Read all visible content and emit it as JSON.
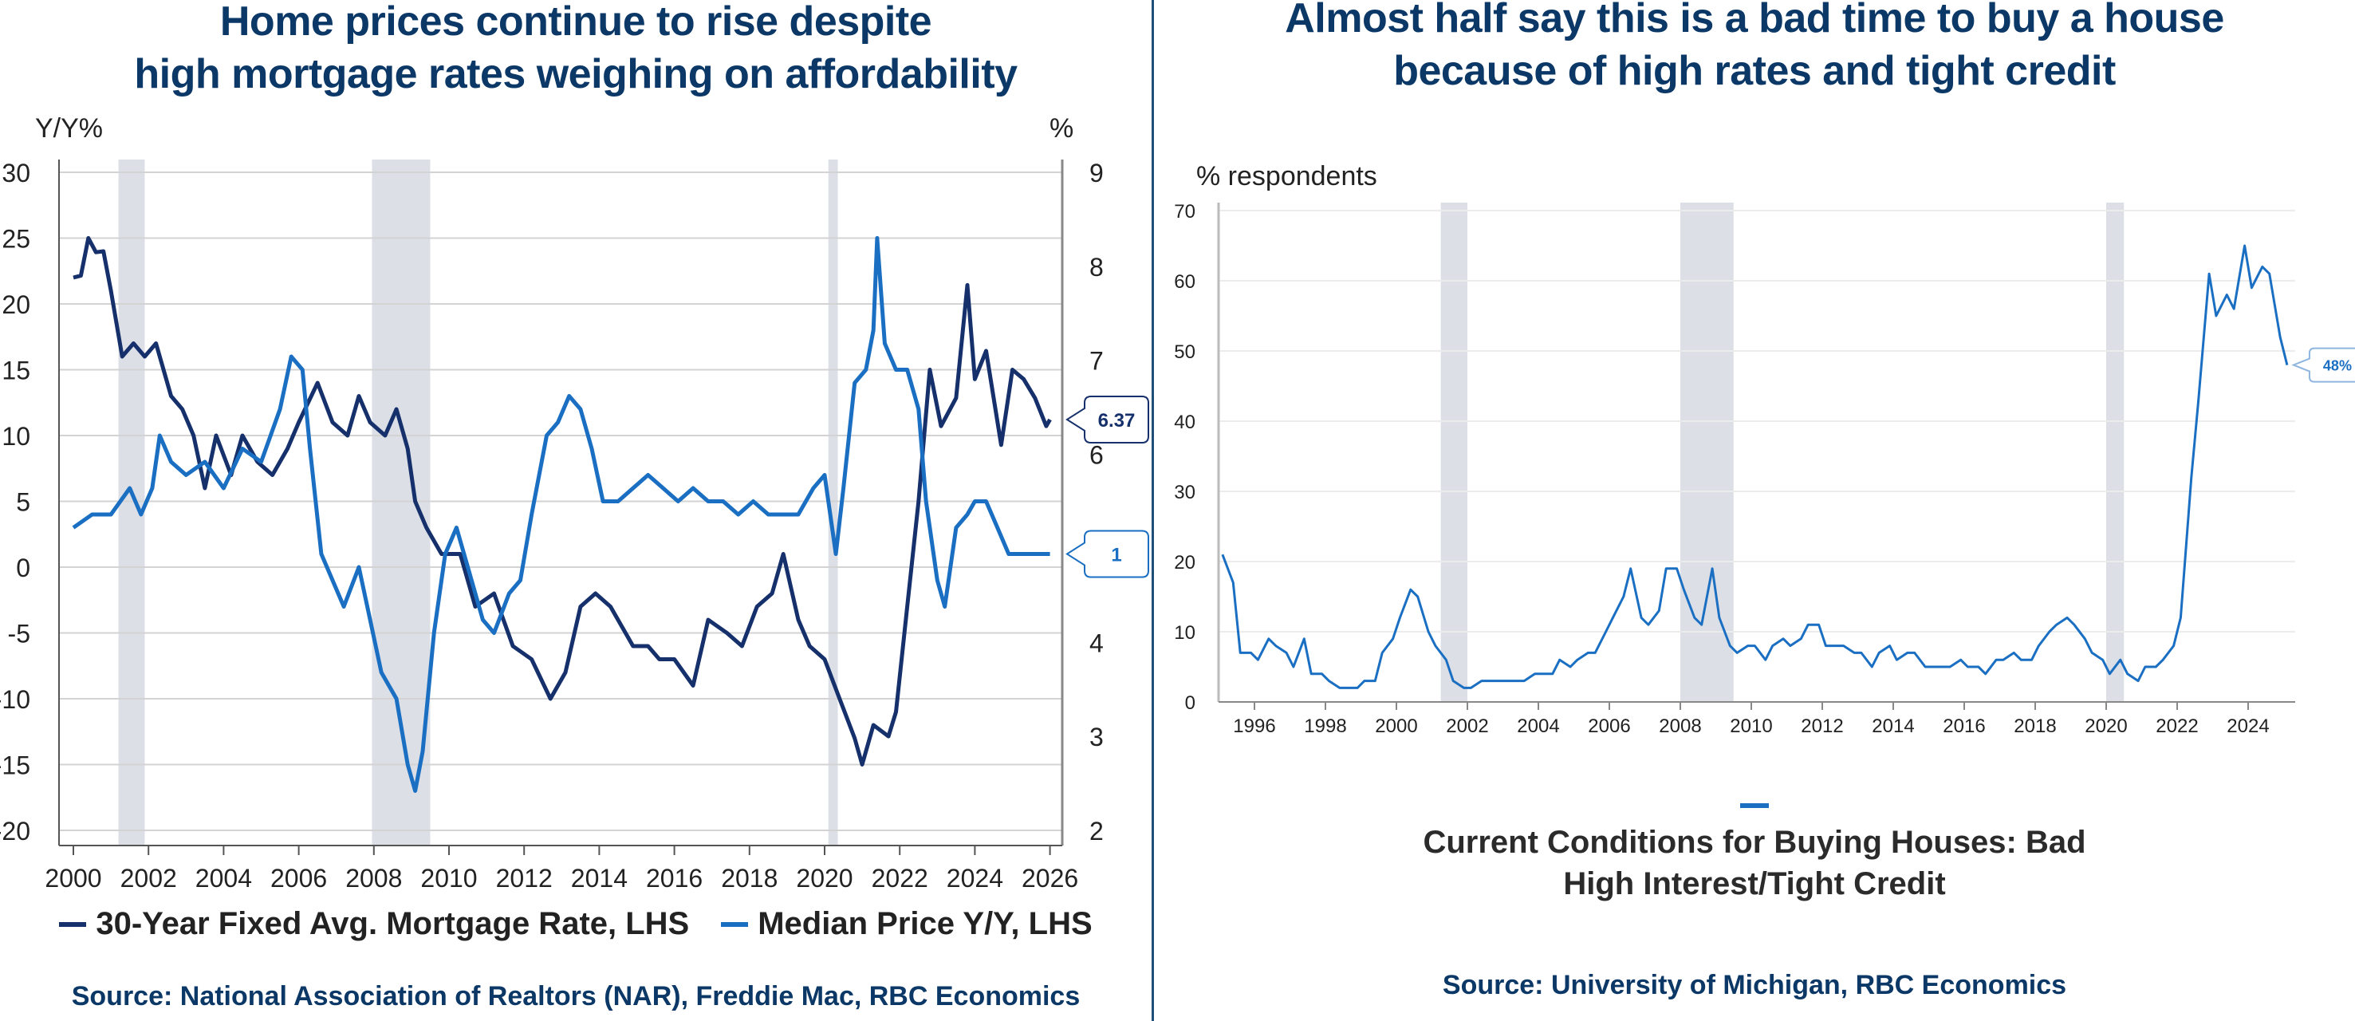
{
  "left_panel": {
    "title_lines": [
      "Home prices continue to rise despite",
      "high mortgage rates weighing on affordability"
    ],
    "left_axis_label": "Y/Y%",
    "right_axis_label": "%",
    "legend": [
      {
        "label": "30-Year Fixed Avg. Mortgage Rate, LHS",
        "color": "#15306b"
      },
      {
        "label": "Median Price Y/Y, LHS",
        "color": "#1a6fc2"
      }
    ],
    "source": "Source: National Association of Realtors (NAR), Freddie Mac, RBC Economics",
    "callouts": [
      {
        "series": "30-Year Fixed Avg. Mortgage Rate, LHS",
        "text": "6.37",
        "color": "#15306b"
      },
      {
        "series": "Median Price Y/Y, LHS",
        "text": "1",
        "color": "#1a6fc2"
      }
    ]
  },
  "right_panel": {
    "title_lines": [
      "Almost half say this is a bad time to buy a house",
      "because of high rates and tight credit"
    ],
    "y_axis_label": "% respondents",
    "legend_lines": [
      "Current Conditions for Buying Houses: Bad",
      "High Interest/Tight Credit"
    ],
    "legend_color": "#1a6fc2",
    "source": "Source: University of Michigan, RBC Economics",
    "callout": {
      "text": "48%",
      "color": "#1a6fc2"
    }
  },
  "chart_data": [
    {
      "type": "line",
      "title": "Home prices continue to rise despite high mortgage rates weighing on affordability",
      "xlabel": "",
      "ylabel": "Y/Y%",
      "y2label": "%",
      "xlim": [
        1999.5,
        2026.5
      ],
      "ylim": [
        -21,
        31
      ],
      "y2lim": [
        1.86,
        9.14
      ],
      "x_ticks": [
        2000,
        2002,
        2004,
        2006,
        2008,
        2010,
        2012,
        2014,
        2016,
        2018,
        2020,
        2022,
        2024,
        2026
      ],
      "y_ticks": [
        30,
        25,
        20,
        15,
        10,
        5,
        0,
        -5,
        -10,
        -15,
        -20
      ],
      "y2_ticks": [
        9,
        8,
        7,
        6,
        5,
        4,
        3,
        2
      ],
      "grid": true,
      "legend_position": "bottom",
      "recessions": [
        [
          2001.2,
          2001.9
        ],
        [
          2007.95,
          2009.5
        ],
        [
          2020.1,
          2020.35
        ]
      ],
      "series": [
        {
          "name": "30-Year Fixed Avg. Mortgage Rate, LHS",
          "axis": "right",
          "color": "#15306b",
          "last_value_label": "6.37",
          "x": [
            2000.0,
            2000.2,
            2000.4,
            2000.6,
            2000.8,
            2001.0,
            2001.3,
            2001.6,
            2001.9,
            2002.2,
            2002.6,
            2002.9,
            2003.2,
            2003.5,
            2003.8,
            2004.2,
            2004.5,
            2004.9,
            2005.3,
            2005.7,
            2006.0,
            2006.5,
            2006.9,
            2007.3,
            2007.6,
            2007.9,
            2008.3,
            2008.6,
            2008.9,
            2009.1,
            2009.4,
            2009.8,
            2010.3,
            2010.7,
            2011.2,
            2011.7,
            2012.2,
            2012.7,
            2013.1,
            2013.5,
            2013.9,
            2014.3,
            2014.9,
            2015.3,
            2015.6,
            2016.0,
            2016.5,
            2016.9,
            2017.4,
            2017.8,
            2018.2,
            2018.6,
            2018.9,
            2019.3,
            2019.6,
            2020.0,
            2020.4,
            2020.8,
            2021.0,
            2021.3,
            2021.7,
            2021.9,
            2022.2,
            2022.5,
            2022.8,
            2023.1,
            2023.5,
            2023.8,
            2024.0,
            2024.3,
            2024.7,
            2025.0,
            2025.3,
            2025.6,
            2025.9,
            2026.0
          ],
          "values": [
            7.88,
            7.9,
            8.3,
            8.15,
            8.16,
            7.74,
            7.04,
            7.18,
            7.04,
            7.18,
            6.62,
            6.48,
            6.2,
            5.64,
            6.2,
            5.78,
            6.2,
            5.92,
            5.78,
            6.06,
            6.34,
            6.76,
            6.34,
            6.2,
            6.62,
            6.34,
            6.2,
            6.48,
            6.06,
            5.5,
            5.22,
            4.94,
            4.94,
            4.38,
            4.52,
            3.96,
            3.82,
            3.4,
            3.68,
            4.38,
            4.52,
            4.38,
            3.96,
            3.96,
            3.82,
            3.82,
            3.54,
            4.24,
            4.1,
            3.96,
            4.38,
            4.52,
            4.94,
            4.24,
            3.96,
            3.82,
            3.4,
            2.98,
            2.7,
            3.12,
            3.0,
            3.26,
            4.38,
            5.5,
            6.9,
            6.3,
            6.6,
            7.8,
            6.8,
            7.1,
            6.1,
            6.9,
            6.8,
            6.6,
            6.3,
            6.37
          ]
        },
        {
          "name": "Median Price Y/Y, LHS",
          "axis": "left",
          "color": "#1a6fc2",
          "last_value_label": "1",
          "x": [
            2000.0,
            2000.5,
            2001.0,
            2001.5,
            2001.8,
            2002.1,
            2002.3,
            2002.6,
            2003.0,
            2003.5,
            2004.0,
            2004.5,
            2005.0,
            2005.5,
            2005.8,
            2006.1,
            2006.3,
            2006.6,
            2006.9,
            2007.2,
            2007.6,
            2007.9,
            2008.2,
            2008.6,
            2008.9,
            2009.1,
            2009.3,
            2009.6,
            2009.9,
            2010.2,
            2010.6,
            2010.9,
            2011.2,
            2011.6,
            2011.9,
            2012.2,
            2012.6,
            2012.9,
            2013.2,
            2013.5,
            2013.8,
            2014.1,
            2014.5,
            2014.9,
            2015.3,
            2015.7,
            2016.1,
            2016.5,
            2016.9,
            2017.3,
            2017.7,
            2018.1,
            2018.5,
            2018.9,
            2019.3,
            2019.7,
            2020.0,
            2020.3,
            2020.5,
            2020.8,
            2021.1,
            2021.3,
            2021.4,
            2021.6,
            2021.9,
            2022.2,
            2022.5,
            2022.7,
            2023.0,
            2023.2,
            2023.5,
            2023.8,
            2024.0,
            2024.3,
            2024.6,
            2024.9,
            2025.2,
            2025.6,
            2026.0
          ],
          "values": [
            3,
            4,
            4,
            6,
            4,
            6,
            10,
            8,
            7,
            8,
            6,
            9,
            8,
            12,
            16,
            15,
            9,
            1,
            -1,
            -3,
            0,
            -4,
            -8,
            -10,
            -15,
            -17,
            -14,
            -5,
            1,
            3,
            -1,
            -4,
            -5,
            -2,
            -1,
            4,
            10,
            11,
            13,
            12,
            9,
            5,
            5,
            6,
            7,
            6,
            5,
            6,
            5,
            5,
            4,
            5,
            4,
            4,
            4,
            6,
            7,
            1,
            6,
            14,
            15,
            18,
            25,
            17,
            15,
            15,
            12,
            5,
            -1,
            -3,
            3,
            4,
            5,
            5,
            3,
            1,
            1,
            1,
            1
          ]
        }
      ]
    },
    {
      "type": "line",
      "title": "Almost half say this is a bad time to buy a house because of high rates and tight credit",
      "xlabel": "",
      "ylabel": "% respondents",
      "xlim": [
        1994.8,
        2025.7
      ],
      "ylim": [
        0,
        72
      ],
      "x_ticks": [
        1996,
        1998,
        2000,
        2002,
        2004,
        2006,
        2008,
        2010,
        2012,
        2014,
        2016,
        2018,
        2020,
        2022,
        2024
      ],
      "y_ticks": [
        0,
        10,
        20,
        30,
        40,
        50,
        60,
        70
      ],
      "grid": true,
      "legend_position": "bottom",
      "recessions": [
        [
          2001.25,
          2002.0
        ],
        [
          2008.0,
          2009.5
        ],
        [
          2020.0,
          2020.5
        ]
      ],
      "series": [
        {
          "name": "Current Conditions for Buying Houses: Bad High Interest/Tight Credit",
          "color": "#1a6fc2",
          "last_value_label": "48%",
          "x": [
            1995.1,
            1995.4,
            1995.6,
            1995.9,
            1996.1,
            1996.4,
            1996.6,
            1996.9,
            1997.1,
            1997.4,
            1997.6,
            1997.9,
            1998.1,
            1998.4,
            1998.6,
            1998.9,
            1999.1,
            1999.4,
            1999.6,
            1999.9,
            2000.1,
            2000.4,
            2000.6,
            2000.9,
            2001.1,
            2001.4,
            2001.6,
            2001.9,
            2002.1,
            2002.4,
            2002.6,
            2002.9,
            2003.1,
            2003.4,
            2003.6,
            2003.9,
            2004.1,
            2004.4,
            2004.6,
            2004.9,
            2005.1,
            2005.4,
            2005.6,
            2005.9,
            2006.1,
            2006.4,
            2006.6,
            2006.9,
            2007.1,
            2007.4,
            2007.6,
            2007.9,
            2008.1,
            2008.4,
            2008.6,
            2008.9,
            2009.1,
            2009.4,
            2009.6,
            2009.9,
            2010.1,
            2010.4,
            2010.6,
            2010.9,
            2011.1,
            2011.4,
            2011.6,
            2011.9,
            2012.1,
            2012.4,
            2012.6,
            2012.9,
            2013.1,
            2013.4,
            2013.6,
            2013.9,
            2014.1,
            2014.4,
            2014.6,
            2014.9,
            2015.1,
            2015.4,
            2015.6,
            2015.9,
            2016.1,
            2016.4,
            2016.6,
            2016.9,
            2017.1,
            2017.4,
            2017.6,
            2017.9,
            2018.1,
            2018.4,
            2018.6,
            2018.9,
            2019.1,
            2019.4,
            2019.6,
            2019.9,
            2020.1,
            2020.4,
            2020.6,
            2020.9,
            2021.1,
            2021.4,
            2021.6,
            2021.9,
            2022.1,
            2022.4,
            2022.6,
            2022.9,
            2023.1,
            2023.4,
            2023.6,
            2023.9,
            2024.1,
            2024.4,
            2024.6,
            2024.9,
            2025.1
          ],
          "values": [
            21,
            17,
            7,
            7,
            6,
            9,
            8,
            7,
            5,
            9,
            4,
            4,
            3,
            2,
            2,
            2,
            3,
            3,
            7,
            9,
            12,
            16,
            15,
            10,
            8,
            6,
            3,
            2,
            2,
            3,
            3,
            3,
            3,
            3,
            3,
            4,
            4,
            4,
            6,
            5,
            6,
            7,
            7,
            10,
            12,
            15,
            19,
            12,
            11,
            13,
            19,
            19,
            16,
            12,
            11,
            19,
            12,
            8,
            7,
            8,
            8,
            6,
            8,
            9,
            8,
            9,
            11,
            11,
            8,
            8,
            8,
            7,
            7,
            5,
            7,
            8,
            6,
            7,
            7,
            5,
            5,
            5,
            5,
            6,
            5,
            5,
            4,
            6,
            6,
            7,
            6,
            6,
            8,
            10,
            11,
            12,
            11,
            9,
            7,
            6,
            4,
            6,
            4,
            3,
            5,
            5,
            6,
            8,
            12,
            32,
            43,
            61,
            55,
            58,
            56,
            65,
            59,
            62,
            61,
            52,
            48
          ]
        }
      ]
    }
  ]
}
